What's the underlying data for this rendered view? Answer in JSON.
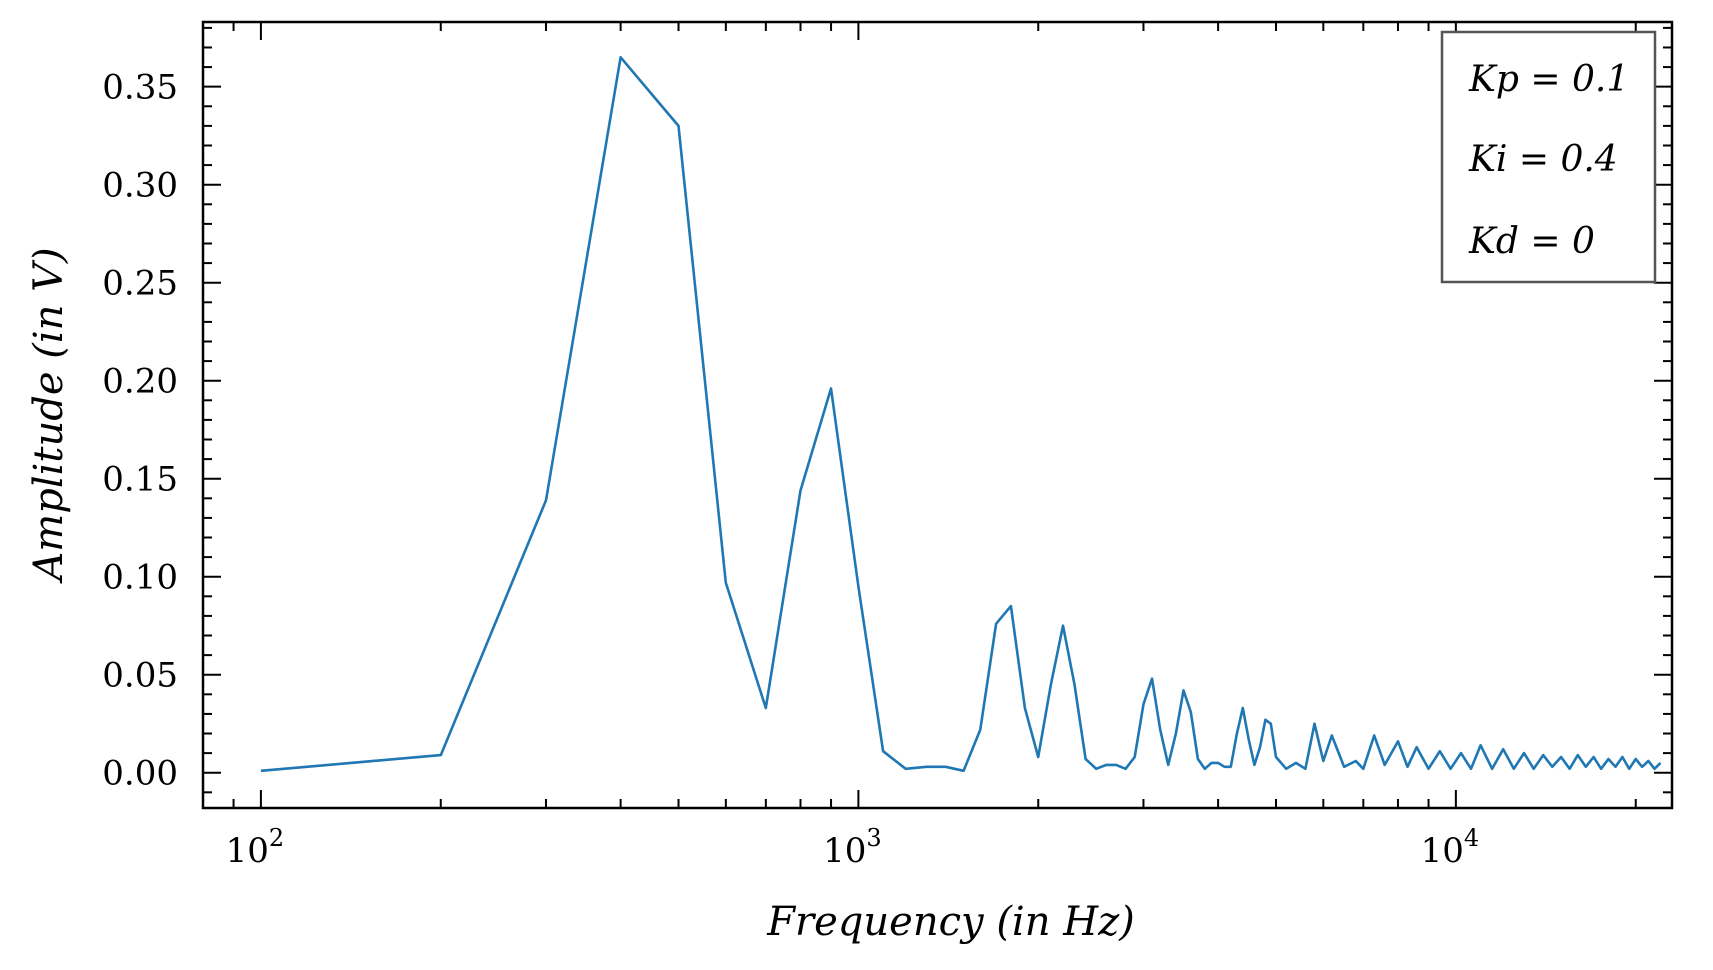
{
  "chart_data": {
    "type": "line",
    "title": "",
    "xlabel": "Frequency (in Hz)",
    "ylabel": "Amplitude (in V)",
    "xscale": "log",
    "xlim": [
      80,
      23000
    ],
    "ylim": [
      -0.018,
      0.383
    ],
    "x_ticks": [
      {
        "value": 100,
        "base": "10",
        "exp": "2"
      },
      {
        "value": 1000,
        "base": "10",
        "exp": "3"
      },
      {
        "value": 10000,
        "base": "10",
        "exp": "4"
      }
    ],
    "y_ticks": [
      {
        "value": 0.0,
        "label": "0.00"
      },
      {
        "value": 0.05,
        "label": "0.05"
      },
      {
        "value": 0.1,
        "label": "0.10"
      },
      {
        "value": 0.15,
        "label": "0.15"
      },
      {
        "value": 0.2,
        "label": "0.20"
      },
      {
        "value": 0.25,
        "label": "0.25"
      },
      {
        "value": 0.3,
        "label": "0.30"
      },
      {
        "value": 0.35,
        "label": "0.35"
      }
    ],
    "grid": false,
    "legend": {
      "placement": "top-right",
      "entries": [
        "Kp = 0.1",
        "Ki = 0.4",
        "Kd = 0"
      ]
    },
    "series": [
      {
        "color": "#1f77b4",
        "x": [
          100,
          200,
          300,
          400,
          500,
          600,
          700,
          800,
          900,
          1000,
          1100,
          1200,
          1300,
          1400,
          1500,
          1600,
          1700,
          1800,
          1900,
          2000,
          2100,
          2200,
          2300,
          2400,
          2500,
          2600,
          2700,
          2800,
          2900,
          3000,
          3100,
          3200,
          3300,
          3400,
          3500,
          3600,
          3700,
          3800,
          3900,
          4000,
          4100,
          4200,
          4300,
          4400,
          4500,
          4600,
          4700,
          4800,
          4900,
          5000,
          5200,
          5400,
          5600,
          5800,
          6000,
          6200,
          6500,
          6800,
          7000,
          7300,
          7600,
          8000,
          8300,
          8600,
          9000,
          9400,
          9800,
          10200,
          10600,
          11000,
          11500,
          12000,
          12500,
          13000,
          13500,
          14000,
          14500,
          15000,
          15500,
          16000,
          16500,
          17000,
          17500,
          18000,
          18500,
          19000,
          19500,
          20000,
          20500,
          21000,
          21500,
          22000
        ],
        "y": [
          0.001,
          0.009,
          0.139,
          0.365,
          0.33,
          0.097,
          0.033,
          0.144,
          0.196,
          0.095,
          0.011,
          0.002,
          0.003,
          0.003,
          0.001,
          0.022,
          0.076,
          0.085,
          0.033,
          0.008,
          0.045,
          0.075,
          0.045,
          0.007,
          0.002,
          0.004,
          0.004,
          0.002,
          0.008,
          0.035,
          0.048,
          0.022,
          0.004,
          0.02,
          0.042,
          0.031,
          0.007,
          0.002,
          0.005,
          0.005,
          0.003,
          0.003,
          0.02,
          0.033,
          0.017,
          0.004,
          0.013,
          0.027,
          0.025,
          0.008,
          0.002,
          0.005,
          0.002,
          0.025,
          0.006,
          0.019,
          0.003,
          0.006,
          0.002,
          0.019,
          0.004,
          0.016,
          0.003,
          0.013,
          0.002,
          0.011,
          0.002,
          0.01,
          0.002,
          0.014,
          0.002,
          0.012,
          0.002,
          0.01,
          0.002,
          0.009,
          0.003,
          0.008,
          0.002,
          0.009,
          0.003,
          0.008,
          0.002,
          0.007,
          0.003,
          0.008,
          0.002,
          0.007,
          0.003,
          0.006,
          0.002,
          0.005
        ]
      }
    ]
  }
}
